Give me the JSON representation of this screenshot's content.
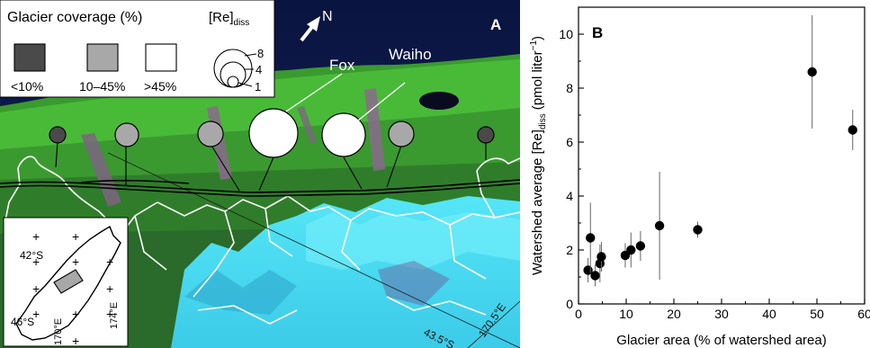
{
  "panel_a": {
    "label": "A",
    "legend": {
      "title": "Glacier coverage (%)",
      "classes": [
        {
          "label": "<10%",
          "color": "#4a4a4a"
        },
        {
          "label": "10–45%",
          "color": "#a8a8a8"
        },
        {
          "label": ">45%",
          "color": "#ffffff"
        }
      ],
      "size_title": "[Re]",
      "size_title_sub": "diss",
      "size_values": [
        "8",
        "4",
        "1"
      ]
    },
    "north_label": "N",
    "callouts": [
      "Fox",
      "Waiho"
    ],
    "watershed_markers": [
      {
        "coverage": "<10%"
      },
      {
        "coverage": "10–45%"
      },
      {
        "coverage": "10–45%"
      },
      {
        "coverage": ">45%"
      },
      {
        "coverage": ">45%"
      },
      {
        "coverage": "10–45%"
      },
      {
        "coverage": "<10%"
      }
    ],
    "inset": {
      "lat_labels": [
        "42°S",
        "46°S"
      ],
      "lon_labels": [
        "170°E",
        "174°E"
      ]
    },
    "grid_labels": [
      "43.5°S",
      "170.5°E"
    ],
    "colors": {
      "sea": "#0d1a4a",
      "vegetation": "#3fae2e",
      "ice": "#42e4f5",
      "rock": "#8a6a8c"
    }
  },
  "panel_b": {
    "label": "B",
    "chart_data": {
      "type": "scatter",
      "xlabel": "Glacier area (% of watershed area)",
      "ylabel_main": "Watershed average [Re]",
      "ylabel_sub": "diss",
      "ylabel_unit": "(pmol liter",
      "ylabel_exp": "−1",
      "ylabel_close": ")",
      "xlim": [
        0,
        60
      ],
      "ylim": [
        0,
        11
      ],
      "x_ticks": [
        0,
        10,
        20,
        30,
        40,
        50,
        60
      ],
      "y_ticks": [
        0,
        2,
        4,
        6,
        8,
        10
      ],
      "points": [
        {
          "x": 2.0,
          "y": 1.25,
          "err": 0.45
        },
        {
          "x": 2.5,
          "y": 2.45,
          "err": 1.3
        },
        {
          "x": 3.5,
          "y": 1.05,
          "err": 0.4
        },
        {
          "x": 4.5,
          "y": 1.5,
          "err": 0.7
        },
        {
          "x": 4.8,
          "y": 1.75,
          "err": 0.55
        },
        {
          "x": 9.8,
          "y": 1.8,
          "err": 0.45
        },
        {
          "x": 11.0,
          "y": 2.0,
          "err": 0.65
        },
        {
          "x": 13.0,
          "y": 2.15,
          "err": 0.55
        },
        {
          "x": 17.0,
          "y": 2.9,
          "err": 2.0
        },
        {
          "x": 25.0,
          "y": 2.75,
          "err": 0.3
        },
        {
          "x": 49.0,
          "y": 8.6,
          "err": 2.1
        },
        {
          "x": 57.5,
          "y": 6.45,
          "err": 0.75
        }
      ]
    }
  }
}
